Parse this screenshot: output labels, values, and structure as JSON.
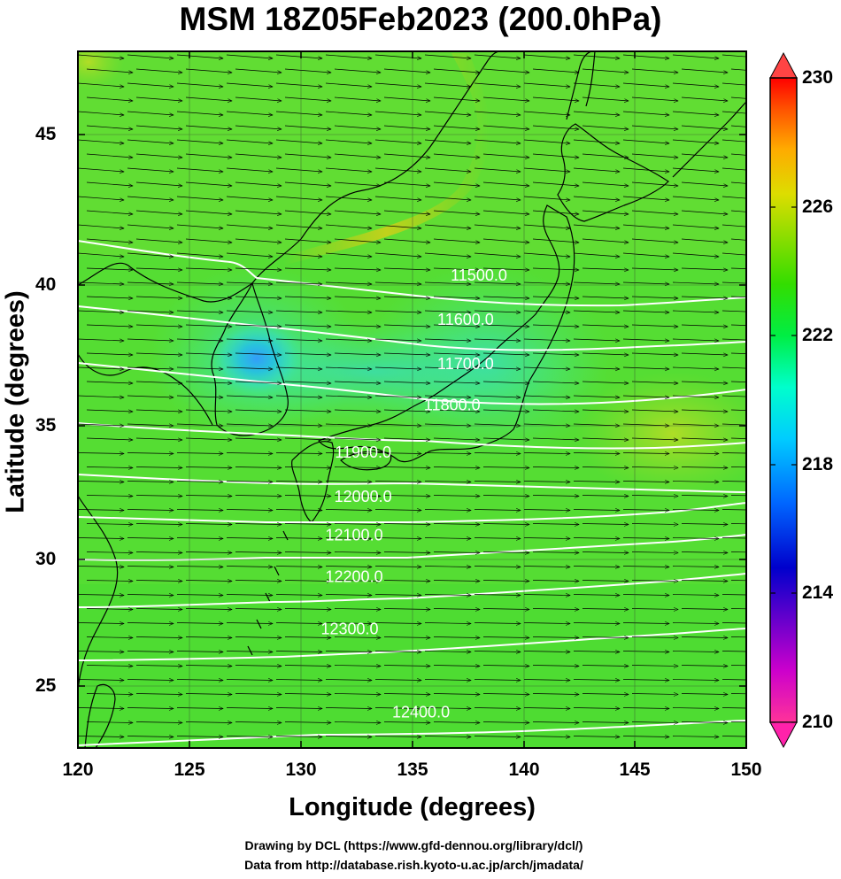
{
  "title": "MSM 18Z05Feb2023 (200.0hPa)",
  "xlabel": "Longitude (degrees)",
  "ylabel": "Latitude  (degrees)",
  "credit_line1": "Drawing by DCL (https://www.gfd-dennou.org/library/dcl/)",
  "credit_line2": "Data from http://database.rish.kyoto-u.ac.jp/arch/jmadata/",
  "map": {
    "lon_range": [
      120,
      150
    ],
    "lat_range": [
      22.4,
      47.6
    ],
    "lon_ticks": [
      "120",
      "125",
      "130",
      "135",
      "140",
      "145",
      "150"
    ],
    "lat_ticks": [
      "25",
      "30",
      "35",
      "40",
      "45"
    ],
    "field": "temperature (K)",
    "colorbar": {
      "min": 210,
      "max": 230,
      "labels": [
        "230",
        "226",
        "222",
        "218",
        "214",
        "210"
      ],
      "colors": [
        "#ff3399",
        "#cc00cc",
        "#6600cc",
        "#0000cc",
        "#0066ff",
        "#00ccff",
        "#00ffcc",
        "#00ee44",
        "#33dd00",
        "#88dd00",
        "#dddd00",
        "#ffaa00",
        "#ff5500",
        "#ff0000"
      ]
    },
    "contours": [
      {
        "label": "11500.0",
        "lon": 138.0,
        "lat": 39.5
      },
      {
        "label": "11600.0",
        "lon": 137.4,
        "lat": 37.9
      },
      {
        "label": "11700.0",
        "lon": 137.4,
        "lat": 36.3
      },
      {
        "label": "11800.0",
        "lon": 136.8,
        "lat": 34.8
      },
      {
        "label": "11900.0",
        "lon": 132.8,
        "lat": 33.1
      },
      {
        "label": "12000.0",
        "lon": 132.8,
        "lat": 31.5
      },
      {
        "label": "12100.0",
        "lon": 132.4,
        "lat": 30.1
      },
      {
        "label": "12200.0",
        "lon": 132.4,
        "lat": 28.6
      },
      {
        "label": "12300.0",
        "lon": 132.2,
        "lat": 26.7
      },
      {
        "label": "12400.0",
        "lon": 135.4,
        "lat": 23.7
      }
    ],
    "wind": "westerly wind vectors"
  }
}
